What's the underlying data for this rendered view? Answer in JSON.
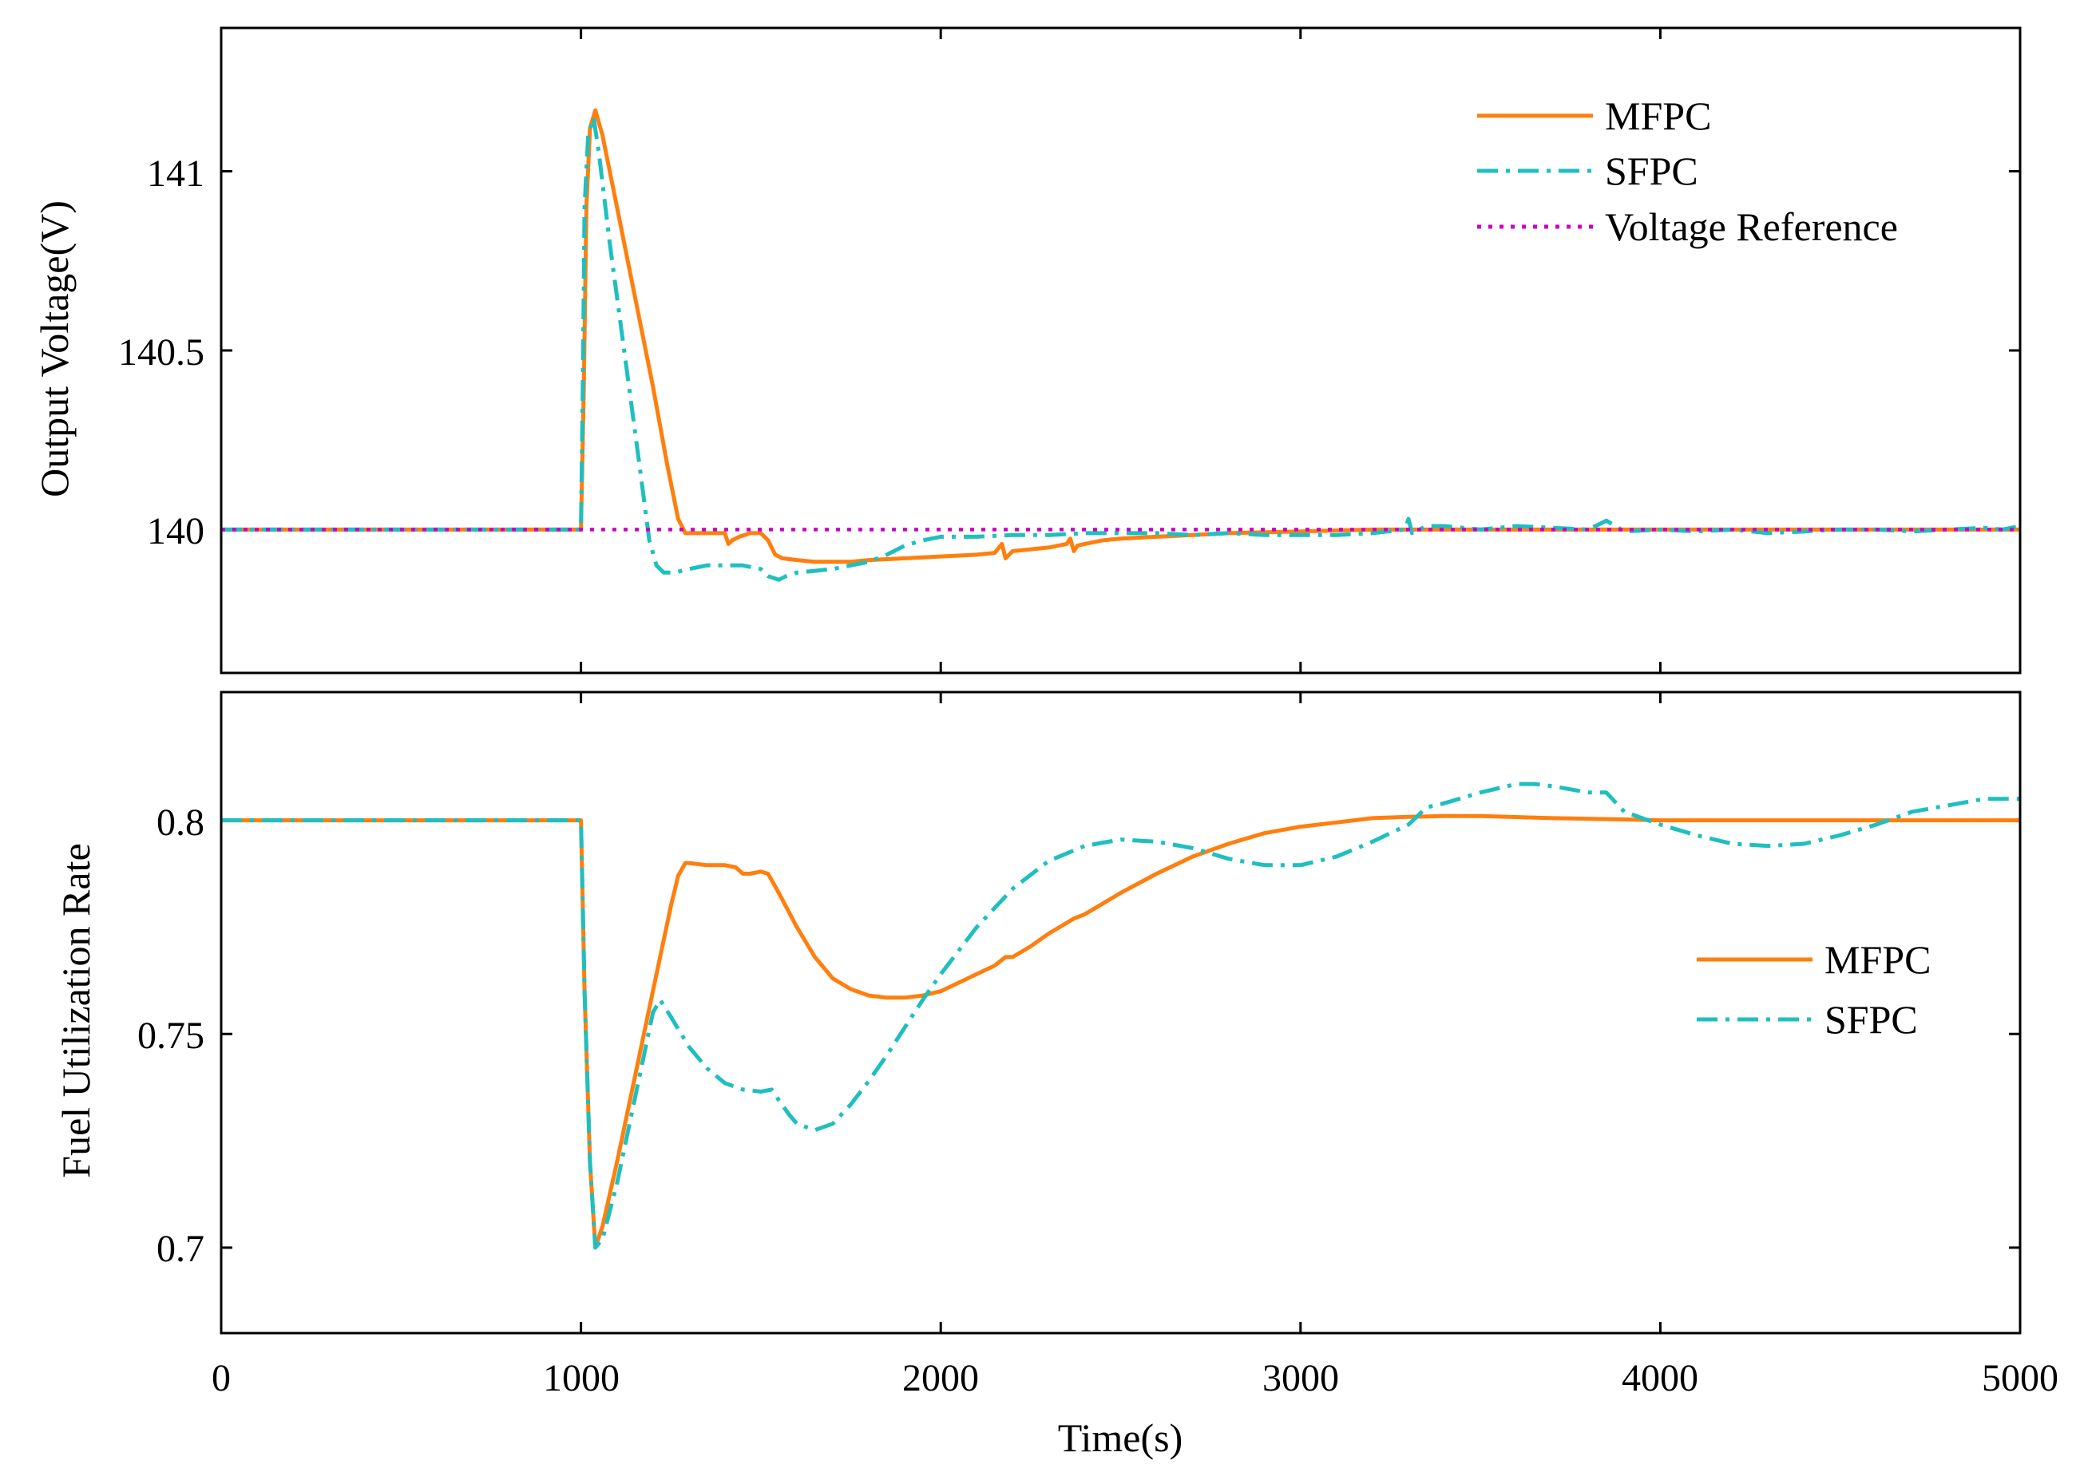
{
  "chart_data": [
    {
      "type": "line",
      "ylabel": "Output Voltage(V)",
      "xlabel": "",
      "xlim": [
        0,
        5000
      ],
      "ylim": [
        139.6,
        141.4
      ],
      "xticks": [
        0,
        1000,
        2000,
        3000,
        4000,
        5000
      ],
      "yticks": [
        140,
        140.5,
        141
      ],
      "ytick_labels": [
        "140",
        "140.5",
        "141"
      ],
      "legend_position": "top-right",
      "series": [
        {
          "name": "MFPC",
          "color": "#ff7f0e",
          "style": "solid",
          "x": [
            0,
            1000,
            1008,
            1015,
            1025,
            1040,
            1060,
            1100,
            1150,
            1200,
            1240,
            1270,
            1290,
            1300,
            1400,
            1410,
            1420,
            1440,
            1470,
            1500,
            1520,
            1540,
            1560,
            1600,
            1650,
            1700,
            1750,
            1800,
            1900,
            2000,
            2100,
            2150,
            2170,
            2180,
            2200,
            2250,
            2300,
            2350,
            2360,
            2370,
            2380,
            2400,
            2450,
            2500,
            2600,
            2700,
            2800,
            3000,
            3200,
            3400,
            3600,
            3800,
            4000,
            4500,
            5000
          ],
          "y": [
            140,
            140,
            140.4,
            140.9,
            141.12,
            141.17,
            141.1,
            140.9,
            140.65,
            140.4,
            140.18,
            140.03,
            139.99,
            139.99,
            139.99,
            139.96,
            139.97,
            139.98,
            139.99,
            139.99,
            139.97,
            139.93,
            139.92,
            139.915,
            139.91,
            139.91,
            139.91,
            139.915,
            139.92,
            139.925,
            139.93,
            139.935,
            139.96,
            139.92,
            139.94,
            139.945,
            139.95,
            139.96,
            139.975,
            139.94,
            139.955,
            139.96,
            139.97,
            139.975,
            139.98,
            139.985,
            139.99,
            139.995,
            140.0,
            140.0,
            140.0,
            140.0,
            140.0,
            140.0,
            140.0
          ]
        },
        {
          "name": "SFPC",
          "color": "#1fbfbf",
          "style": "dashdot",
          "x": [
            0,
            1000,
            1005,
            1010,
            1020,
            1035,
            1050,
            1080,
            1120,
            1160,
            1190,
            1210,
            1230,
            1260,
            1300,
            1350,
            1400,
            1450,
            1500,
            1520,
            1550,
            1570,
            1600,
            1650,
            1700,
            1750,
            1800,
            1850,
            1900,
            1950,
            2000,
            2100,
            2200,
            2300,
            2400,
            2500,
            2600,
            2700,
            2800,
            2900,
            3000,
            3100,
            3200,
            3290,
            3300,
            3310,
            3350,
            3400,
            3500,
            3600,
            3700,
            3800,
            3850,
            3900,
            4000,
            4100,
            4200,
            4300,
            4400,
            4500,
            4600,
            4700,
            4800,
            4900,
            4950,
            5000
          ],
          "y": [
            140,
            140,
            140.4,
            140.9,
            141.1,
            141.15,
            141.05,
            140.8,
            140.5,
            140.2,
            139.97,
            139.9,
            139.88,
            139.88,
            139.89,
            139.9,
            139.9,
            139.9,
            139.89,
            139.87,
            139.86,
            139.87,
            139.88,
            139.885,
            139.89,
            139.9,
            139.91,
            139.93,
            139.955,
            139.97,
            139.98,
            139.98,
            139.985,
            139.985,
            139.99,
            139.99,
            139.99,
            139.985,
            139.99,
            139.985,
            139.985,
            139.985,
            139.99,
            140.0,
            140.03,
            139.99,
            140.01,
            140.01,
            140.0,
            140.01,
            140.005,
            140.0,
            140.025,
            139.995,
            140.0,
            139.995,
            140.0,
            139.99,
            139.995,
            140.0,
            140.0,
            139.995,
            140.0,
            140.005,
            140.0,
            140.01
          ]
        },
        {
          "name": "Voltage Reference",
          "color": "#cc00cc",
          "style": "dotted",
          "x": [
            0,
            5000
          ],
          "y": [
            140,
            140
          ]
        }
      ]
    },
    {
      "type": "line",
      "ylabel": "Fuel Utilization Rate",
      "xlabel": "Time(s)",
      "xlim": [
        0,
        5000
      ],
      "ylim": [
        0.68,
        0.83
      ],
      "xticks": [
        0,
        1000,
        2000,
        3000,
        4000,
        5000
      ],
      "xtick_labels": [
        "0",
        "1000",
        "2000",
        "3000",
        "4000",
        "5000"
      ],
      "yticks": [
        0.7,
        0.75,
        0.8
      ],
      "ytick_labels": [
        "0.7",
        "0.75",
        "0.8"
      ],
      "legend_position": "center-right",
      "series": [
        {
          "name": "MFPC",
          "color": "#ff7f0e",
          "style": "solid",
          "x": [
            0,
            1000,
            1010,
            1025,
            1040,
            1060,
            1100,
            1150,
            1200,
            1250,
            1270,
            1290,
            1300,
            1350,
            1400,
            1430,
            1450,
            1470,
            1500,
            1520,
            1550,
            1600,
            1650,
            1700,
            1750,
            1800,
            1850,
            1900,
            1950,
            2000,
            2050,
            2100,
            2150,
            2180,
            2200,
            2250,
            2300,
            2350,
            2370,
            2400,
            2450,
            2500,
            2600,
            2700,
            2800,
            2900,
            3000,
            3100,
            3200,
            3300,
            3400,
            3500,
            3700,
            3900,
            4000,
            4500,
            5000
          ],
          "y": [
            0.8,
            0.8,
            0.76,
            0.72,
            0.7,
            0.705,
            0.72,
            0.74,
            0.76,
            0.78,
            0.787,
            0.79,
            0.79,
            0.7895,
            0.7895,
            0.789,
            0.7875,
            0.7875,
            0.788,
            0.7875,
            0.783,
            0.775,
            0.768,
            0.763,
            0.7605,
            0.759,
            0.7585,
            0.7585,
            0.759,
            0.76,
            0.762,
            0.764,
            0.766,
            0.768,
            0.768,
            0.7705,
            0.7735,
            0.776,
            0.777,
            0.778,
            0.7805,
            0.783,
            0.7875,
            0.7915,
            0.7945,
            0.797,
            0.7985,
            0.7995,
            0.8005,
            0.8008,
            0.801,
            0.801,
            0.8005,
            0.8002,
            0.8,
            0.8,
            0.8
          ]
        },
        {
          "name": "SFPC",
          "color": "#1fbfbf",
          "style": "dashdot",
          "x": [
            0,
            1000,
            1010,
            1025,
            1040,
            1060,
            1100,
            1150,
            1200,
            1220,
            1250,
            1300,
            1350,
            1400,
            1450,
            1500,
            1530,
            1550,
            1580,
            1600,
            1650,
            1700,
            1750,
            1800,
            1850,
            1900,
            1950,
            2000,
            2100,
            2200,
            2300,
            2400,
            2500,
            2600,
            2700,
            2800,
            2900,
            3000,
            3100,
            3200,
            3300,
            3350,
            3400,
            3500,
            3600,
            3650,
            3700,
            3800,
            3850,
            3900,
            4000,
            4100,
            4200,
            4300,
            4400,
            4500,
            4600,
            4700,
            4800,
            4900,
            5000
          ],
          "y": [
            0.8,
            0.8,
            0.76,
            0.72,
            0.7,
            0.702,
            0.715,
            0.735,
            0.755,
            0.758,
            0.754,
            0.747,
            0.742,
            0.7385,
            0.737,
            0.7365,
            0.737,
            0.7345,
            0.731,
            0.729,
            0.7275,
            0.729,
            0.7335,
            0.739,
            0.745,
            0.7515,
            0.758,
            0.764,
            0.775,
            0.784,
            0.7905,
            0.794,
            0.7955,
            0.795,
            0.7935,
            0.791,
            0.7895,
            0.7895,
            0.7915,
            0.795,
            0.799,
            0.803,
            0.804,
            0.8065,
            0.8085,
            0.8085,
            0.808,
            0.8065,
            0.8065,
            0.802,
            0.799,
            0.7965,
            0.7945,
            0.794,
            0.7945,
            0.7965,
            0.799,
            0.802,
            0.8035,
            0.805,
            0.805
          ]
        }
      ]
    }
  ]
}
